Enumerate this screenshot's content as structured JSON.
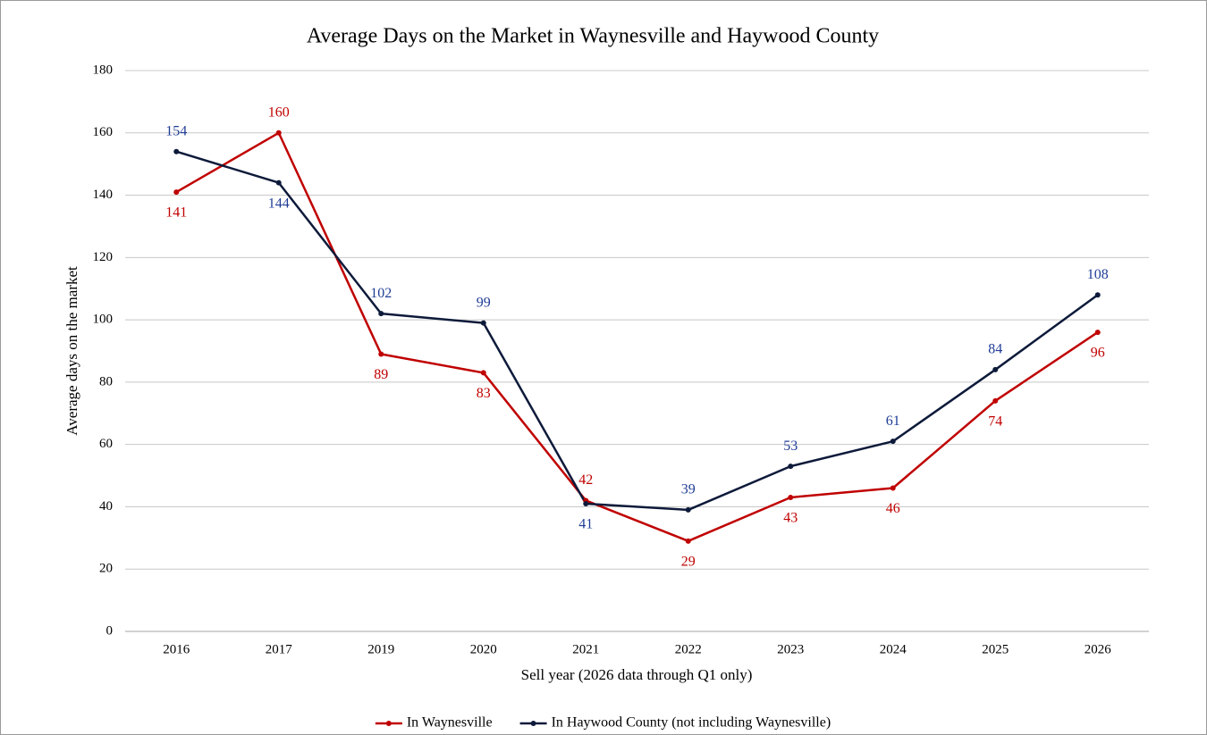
{
  "chart_data": {
    "type": "line",
    "title": "Average Days on the Market in Waynesville and Haywood County",
    "x_label": "Sell year (2026 data through Q1 only)",
    "y_label": "Average days on the market",
    "categories": [
      "2016",
      "2017",
      "2019",
      "2020",
      "2021",
      "2022",
      "2023",
      "2024",
      "2025",
      "2026"
    ],
    "series": [
      {
        "name": "In Waynesville",
        "color": "#c00000",
        "label_color": "#c00000",
        "values": [
          141,
          160,
          89,
          83,
          42,
          29,
          43,
          46,
          74,
          96
        ]
      },
      {
        "name": "In Haywood County (not including Waynesville)",
        "color": "#0d1a3a",
        "label_color": "#1f3c96",
        "values": [
          154,
          144,
          102,
          99,
          41,
          39,
          53,
          61,
          84,
          108
        ]
      }
    ],
    "ylim": [
      0,
      180
    ],
    "yticks": [
      0,
      20,
      40,
      60,
      80,
      100,
      120,
      140,
      160,
      180
    ],
    "grid": true,
    "legend": "bottom"
  }
}
